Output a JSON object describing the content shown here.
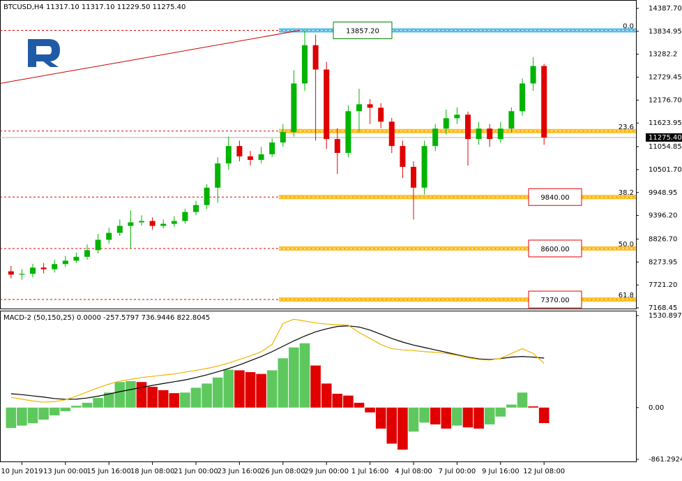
{
  "chart_data": [
    {
      "type": "candlestick",
      "title": "BTCUSD,H4 11317.10 11317.10 11229.50 11275.40",
      "categories": [
        null,
        "10 Jun 2019",
        null,
        null,
        null,
        "13 Jun 00:00",
        null,
        null,
        null,
        "15 Jun 16:00",
        null,
        null,
        null,
        "18 Jun 08:00",
        null,
        null,
        null,
        "21 Jun 00:00",
        null,
        null,
        null,
        "23 Jun 16:00",
        null,
        null,
        null,
        "26 Jun 08:00",
        null,
        null,
        null,
        "29 Jun 00:00",
        null,
        null,
        null,
        "1 Jul 16:00",
        null,
        null,
        null,
        "4 Jul 08:00",
        null,
        null,
        null,
        "7 Jul 00:00",
        null,
        null,
        null,
        "9 Jul 16:00",
        null,
        null,
        null,
        "12 Jul 08:00"
      ],
      "open": [
        8050,
        7970,
        7990,
        8140,
        8100,
        8224,
        8307,
        8400,
        8560,
        8810,
        8977,
        9145,
        9230,
        9262,
        9145,
        9195,
        9262,
        9480,
        9647,
        10066,
        10650,
        11070,
        10820,
        10735,
        10870,
        11155,
        11406,
        12578,
        13500,
        12914,
        11238,
        10904,
        11909,
        12076,
        11993,
        11657,
        11070,
        10568,
        10066,
        11070,
        11490,
        11740,
        11825,
        11238,
        11490,
        11238,
        11490,
        11909,
        12578,
        12998
      ],
      "high": [
        8180,
        8100,
        8230,
        8250,
        8330,
        8420,
        8500,
        8700,
        8950,
        9100,
        9300,
        9520,
        9400,
        9350,
        9300,
        9380,
        9560,
        9750,
        10150,
        10800,
        11300,
        11200,
        10950,
        11050,
        11250,
        11600,
        12900,
        13857.2,
        13750,
        13100,
        11500,
        12050,
        12450,
        12200,
        12100,
        11750,
        11200,
        10700,
        11200,
        11600,
        11950,
        12000,
        11900,
        11650,
        11600,
        11650,
        12000,
        12700,
        13215,
        13050
      ],
      "low": [
        7880,
        7850,
        7900,
        8000,
        8020,
        8150,
        8250,
        8330,
        8480,
        8720,
        8900,
        8600,
        9150,
        9050,
        9080,
        9120,
        9200,
        9400,
        9550,
        9700,
        10500,
        10700,
        10600,
        10650,
        10800,
        11050,
        11300,
        12400,
        11200,
        11000,
        10400,
        10800,
        11400,
        11600,
        11500,
        10900,
        10300,
        9300,
        9900,
        10950,
        11350,
        11600,
        10600,
        11100,
        11050,
        11150,
        11400,
        11800,
        12400,
        11100
      ],
      "close": [
        7970,
        7990,
        8140,
        8100,
        8224,
        8307,
        8400,
        8560,
        8810,
        8977,
        9145,
        9230,
        9262,
        9145,
        9195,
        9262,
        9480,
        9647,
        10066,
        10650,
        11070,
        10820,
        10735,
        10870,
        11155,
        11406,
        12578,
        13500,
        12914,
        11238,
        10904,
        11909,
        12076,
        11993,
        11657,
        11070,
        10568,
        10066,
        11070,
        11490,
        11740,
        11825,
        11238,
        11490,
        11238,
        11490,
        11909,
        12578,
        12998,
        11275.4
      ],
      "up_color": "#00b400",
      "down_color": "#e00000",
      "ylim": [
        7135,
        14539
      ],
      "yticks": [
        {
          "value": 14387.7,
          "label": "14387.70"
        },
        13834.95,
        13282.2,
        12729.45,
        {
          "value": 12176.7,
          "label": "12176.70"
        },
        11623.95,
        11054.85,
        {
          "value": 10501.7,
          "label": "10501.70"
        },
        9948.95,
        {
          "value": 9396.2,
          "label": "9396.20"
        },
        {
          "value": 8826.7,
          "label": "8826.70"
        },
        8273.95,
        {
          "value": 7721.2,
          "label": "7721.20"
        },
        7168.45
      ],
      "last_price": {
        "value": 11275.4,
        "label": "11275.40"
      },
      "trendline": {
        "start": 12578,
        "end": 13857.2,
        "color": "#c80000"
      },
      "fib_levels": [
        {
          "level": "0.0",
          "value": 13857.2,
          "price_label": "13857.20",
          "color": "#3cb4e6",
          "label_color": "#008000"
        },
        {
          "level": "23.6",
          "value": 11430,
          "color": "#ffb400"
        },
        {
          "level": "38.2",
          "value": 9840,
          "price_label": "9840.00",
          "color": "#ffb400",
          "label_color": "#e00000"
        },
        {
          "level": "50.0",
          "value": 8600,
          "price_label": "8600.00",
          "color": "#ffb400",
          "label_color": "#e00000"
        },
        {
          "level": "61.8",
          "value": 7370,
          "price_label": "7370.00",
          "color": "#ffb400",
          "label_color": "#e00000"
        }
      ]
    },
    {
      "type": "macd",
      "title": "MACD-2 (50,150,25) 0.0000 -257.5797 736.9446 822.8045",
      "histogram": [
        -340,
        -300,
        -260,
        -200,
        -130,
        -60,
        30,
        80,
        160,
        250,
        425,
        440,
        425,
        345,
        290,
        240,
        250,
        330,
        400,
        500,
        630,
        620,
        590,
        560,
        620,
        820,
        1000,
        1070,
        700,
        400,
        230,
        200,
        80,
        -80,
        -350,
        -600,
        -700,
        -400,
        -250,
        -280,
        -350,
        -300,
        -330,
        -350,
        -280,
        -150,
        50,
        250,
        20,
        -257.5797
      ],
      "up_color": "#5ec85e",
      "down_color": "#e00000",
      "lines": [
        {
          "color": "#000000",
          "values": [
            230,
            215,
            195,
            175,
            150,
            138,
            140,
            160,
            190,
            225,
            265,
            300,
            335,
            370,
            400,
            430,
            460,
            500,
            545,
            595,
            650,
            710,
            780,
            850,
            930,
            1020,
            1110,
            1190,
            1260,
            1310,
            1350,
            1360,
            1340,
            1290,
            1220,
            1150,
            1090,
            1040,
            1000,
            960,
            920,
            880,
            840,
            810,
            800,
            815,
            840,
            850,
            840,
            822.8045
          ]
        },
        {
          "color": "#f0b400",
          "values": [
            170,
            140,
            110,
            90,
            100,
            130,
            190,
            260,
            330,
            390,
            440,
            470,
            500,
            520,
            540,
            560,
            590,
            620,
            650,
            690,
            740,
            800,
            860,
            930,
            1050,
            1400,
            1470,
            1440,
            1410,
            1390,
            1380,
            1370,
            1250,
            1150,
            1050,
            980,
            960,
            950,
            930,
            920,
            900,
            870,
            830,
            800,
            790,
            820,
            900,
            980,
            900,
            736.9446
          ]
        }
      ],
      "ylim": [
        -908,
        1601
      ],
      "yticks": [
        1530.8974,
        {
          "value": 0,
          "label": "0.00"
        },
        -861.2924
      ]
    }
  ]
}
